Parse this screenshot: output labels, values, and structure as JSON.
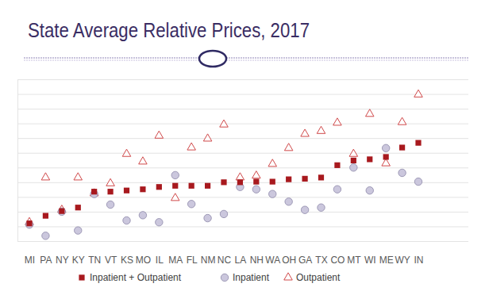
{
  "chart_data": {
    "type": "scatter",
    "title": "State Average Relative Prices, 2017",
    "categories": [
      "MI",
      "PA",
      "NY",
      "KY",
      "TN",
      "VT",
      "KS",
      "MO",
      "IL",
      "MA",
      "FL",
      "NM",
      "NC",
      "LA",
      "NH",
      "WA",
      "OH",
      "GA",
      "TX",
      "CO",
      "MT",
      "WI",
      "ME",
      "WY",
      "IN"
    ],
    "series": [
      {
        "name": "Inpatient + Outpatient",
        "color": "#a8191e",
        "marker": "square",
        "values": [
          130,
          143,
          151,
          157,
          184,
          184,
          186,
          188,
          192,
          194,
          194,
          194,
          200,
          200,
          201,
          201,
          205,
          206,
          208,
          229,
          237,
          239,
          243,
          259,
          267
        ]
      },
      {
        "name": "Inpatient",
        "color": "#cbc7dd",
        "marker": "circle",
        "values": [
          128,
          109,
          150,
          118,
          180,
          162,
          135,
          144,
          132,
          212,
          163,
          139,
          146,
          192,
          188,
          180,
          167,
          153,
          157,
          188,
          225,
          186,
          258,
          216,
          201
        ]
      },
      {
        "name": "Outpatient",
        "color": "#d0494a",
        "marker": "triangle",
        "values": [
          132,
          208,
          153,
          208,
          181,
          198,
          248,
          235,
          279,
          173,
          259,
          274,
          298,
          208,
          211,
          231,
          258,
          282,
          287,
          301,
          248,
          316,
          232,
          302,
          349
        ]
      }
    ],
    "ylim": [
      100,
      375
    ],
    "yticks": [
      100,
      125,
      150,
      175,
      200,
      225,
      250,
      275,
      300,
      325,
      350,
      375
    ],
    "grid": true,
    "legend": "bottom",
    "tick_labels": "x"
  }
}
